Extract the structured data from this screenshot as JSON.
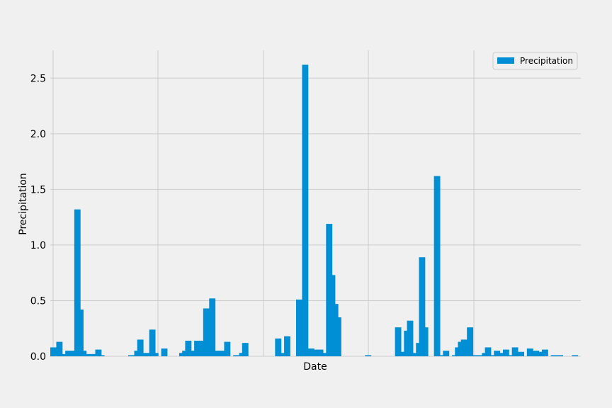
{
  "chart_data": {
    "type": "bar",
    "title": "",
    "xlabel": "Date",
    "ylabel": "Precipitation",
    "ylim": [
      0,
      2.75
    ],
    "yticks": [
      "0.0",
      "0.5",
      "1.0",
      "1.5",
      "2.0",
      "2.5"
    ],
    "grid": true,
    "legend": {
      "position": "top-right",
      "entries": [
        "Precipitation"
      ]
    },
    "colors": {
      "bar": "#008fd5",
      "background": "#f0f0f0",
      "grid": "#cbcbcb"
    },
    "series": [
      {
        "name": "Precipitation",
        "values": [
          0.08,
          0.08,
          0.13,
          0.13,
          0.02,
          0.05,
          0.05,
          0.05,
          1.32,
          1.32,
          0.42,
          0.05,
          0.02,
          0.02,
          0.02,
          0.06,
          0.06,
          0.01,
          0,
          0,
          0,
          0,
          0,
          0,
          0,
          0,
          0.01,
          0.01,
          0.05,
          0.15,
          0.15,
          0.03,
          0.03,
          0.24,
          0.24,
          0.03,
          0,
          0.07,
          0.07,
          0,
          0,
          0,
          0,
          0.03,
          0.05,
          0.14,
          0.14,
          0.05,
          0.14,
          0.14,
          0.14,
          0.43,
          0.43,
          0.52,
          0.52,
          0.05,
          0.05,
          0.05,
          0.13,
          0.13,
          0,
          0.01,
          0.01,
          0.03,
          0.12,
          0.12,
          0,
          0,
          0,
          0,
          0,
          0,
          0,
          0,
          0,
          0.16,
          0.16,
          0.03,
          0.18,
          0.18,
          0,
          0,
          0.51,
          0.51,
          2.62,
          2.62,
          0.07,
          0.07,
          0.06,
          0.06,
          0.06,
          0.03,
          1.19,
          1.19,
          0.73,
          0.47,
          0.35,
          0,
          0,
          0,
          0,
          0,
          0,
          0,
          0,
          0.01,
          0.01,
          0,
          0,
          0,
          0,
          0,
          0,
          0,
          0,
          0.26,
          0.26,
          0.04,
          0.23,
          0.32,
          0.32,
          0.03,
          0.12,
          0.89,
          0.89,
          0.26,
          0,
          0,
          1.62,
          1.62,
          0.01,
          0.05,
          0.05,
          0,
          0.01,
          0.08,
          0.13,
          0.15,
          0.15,
          0.26,
          0.26,
          0.01,
          0.01,
          0.01,
          0.03,
          0.08,
          0.08,
          0.01,
          0.05,
          0.05,
          0.03,
          0.06,
          0.06,
          0.01,
          0.08,
          0.08,
          0.04,
          0.04,
          0,
          0.07,
          0.07,
          0.05,
          0.05,
          0.04,
          0.06,
          0.06,
          0,
          0.01,
          0.01,
          0.01,
          0.01,
          0,
          0,
          0,
          0.01,
          0.01,
          0
        ]
      }
    ]
  }
}
